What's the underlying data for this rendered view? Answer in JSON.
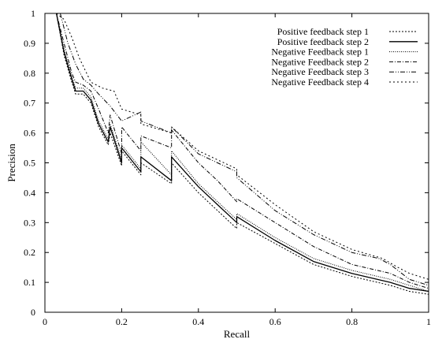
{
  "chart_data": {
    "type": "line",
    "xlabel": "Recall",
    "ylabel": "Precision",
    "xlim": [
      0,
      1
    ],
    "ylim": [
      0,
      1
    ],
    "xticks": [
      "0",
      "0.2",
      "0.4",
      "0.6",
      "0.8",
      "1"
    ],
    "yticks": [
      "0",
      "0.1",
      "0.2",
      "0.3",
      "0.4",
      "0.5",
      "0.6",
      "0.7",
      "0.8",
      "0.9",
      "1"
    ],
    "legend_position": "top-right",
    "grid": false,
    "series": [
      {
        "name": "Positive feedback step 1",
        "dash": "2,2",
        "x": [
          0.03,
          0.05,
          0.07,
          0.08,
          0.1,
          0.12,
          0.14,
          0.165,
          0.17,
          0.2,
          0.2,
          0.25,
          0.25,
          0.33,
          0.33,
          0.4,
          0.45,
          0.5,
          0.5,
          0.6,
          0.7,
          0.8,
          0.9,
          0.95,
          1.0
        ],
        "y": [
          1.0,
          0.86,
          0.77,
          0.73,
          0.73,
          0.7,
          0.62,
          0.56,
          0.6,
          0.49,
          0.54,
          0.46,
          0.5,
          0.43,
          0.5,
          0.4,
          0.34,
          0.28,
          0.3,
          0.23,
          0.16,
          0.12,
          0.09,
          0.07,
          0.06
        ]
      },
      {
        "name": "Positive feedback step 2",
        "dash": "",
        "x": [
          0.03,
          0.05,
          0.07,
          0.08,
          0.1,
          0.12,
          0.14,
          0.165,
          0.17,
          0.2,
          0.2,
          0.25,
          0.25,
          0.33,
          0.33,
          0.4,
          0.45,
          0.5,
          0.5,
          0.6,
          0.7,
          0.8,
          0.9,
          0.95,
          1.0
        ],
        "y": [
          1.0,
          0.87,
          0.78,
          0.74,
          0.74,
          0.71,
          0.63,
          0.57,
          0.62,
          0.5,
          0.55,
          0.47,
          0.52,
          0.44,
          0.52,
          0.42,
          0.36,
          0.3,
          0.32,
          0.24,
          0.17,
          0.13,
          0.1,
          0.08,
          0.07
        ]
      },
      {
        "name": "Negative Feedback step 1",
        "dash": "1,1.5",
        "x": [
          0.03,
          0.05,
          0.07,
          0.08,
          0.1,
          0.12,
          0.14,
          0.165,
          0.17,
          0.2,
          0.2,
          0.25,
          0.25,
          0.33,
          0.33,
          0.4,
          0.45,
          0.5,
          0.5,
          0.6,
          0.7,
          0.8,
          0.9,
          0.95,
          1.0
        ],
        "y": [
          1.0,
          0.88,
          0.79,
          0.75,
          0.75,
          0.72,
          0.64,
          0.58,
          0.63,
          0.51,
          0.56,
          0.48,
          0.57,
          0.46,
          0.54,
          0.43,
          0.37,
          0.31,
          0.33,
          0.25,
          0.18,
          0.14,
          0.11,
          0.09,
          0.07
        ]
      },
      {
        "name": "Negative Feedback step 2",
        "dash": "5,2,1,2",
        "x": [
          0.03,
          0.05,
          0.07,
          0.08,
          0.1,
          0.12,
          0.14,
          0.165,
          0.17,
          0.2,
          0.2,
          0.25,
          0.25,
          0.33,
          0.33,
          0.4,
          0.45,
          0.5,
          0.5,
          0.6,
          0.7,
          0.8,
          0.9,
          0.95,
          1.0
        ],
        "y": [
          1.0,
          0.9,
          0.8,
          0.77,
          0.76,
          0.74,
          0.68,
          0.6,
          0.66,
          0.53,
          0.62,
          0.54,
          0.59,
          0.55,
          0.61,
          0.5,
          0.44,
          0.37,
          0.38,
          0.3,
          0.22,
          0.16,
          0.13,
          0.1,
          0.08
        ]
      },
      {
        "name": "Negative Feedback step 3",
        "dash": "6,2,1,2,1,2",
        "x": [
          0.04,
          0.06,
          0.08,
          0.1,
          0.12,
          0.14,
          0.17,
          0.2,
          0.25,
          0.25,
          0.33,
          0.33,
          0.4,
          0.45,
          0.5,
          0.5,
          0.6,
          0.7,
          0.8,
          0.87,
          0.9,
          0.95,
          1.0
        ],
        "y": [
          1.0,
          0.9,
          0.83,
          0.78,
          0.76,
          0.73,
          0.69,
          0.64,
          0.67,
          0.64,
          0.6,
          0.62,
          0.53,
          0.5,
          0.47,
          0.45,
          0.34,
          0.26,
          0.2,
          0.18,
          0.16,
          0.11,
          0.09
        ]
      },
      {
        "name": "Negative Feedback step 4",
        "dash": "2,3",
        "x": [
          0.03,
          0.05,
          0.07,
          0.09,
          0.12,
          0.15,
          0.18,
          0.2,
          0.25,
          0.25,
          0.33,
          0.33,
          0.4,
          0.45,
          0.5,
          0.5,
          0.6,
          0.7,
          0.8,
          0.88,
          0.92,
          0.95,
          1.0
        ],
        "y": [
          1.0,
          0.98,
          0.92,
          0.85,
          0.77,
          0.75,
          0.74,
          0.68,
          0.66,
          0.63,
          0.6,
          0.62,
          0.54,
          0.51,
          0.48,
          0.46,
          0.36,
          0.27,
          0.21,
          0.18,
          0.15,
          0.13,
          0.11
        ]
      }
    ]
  }
}
